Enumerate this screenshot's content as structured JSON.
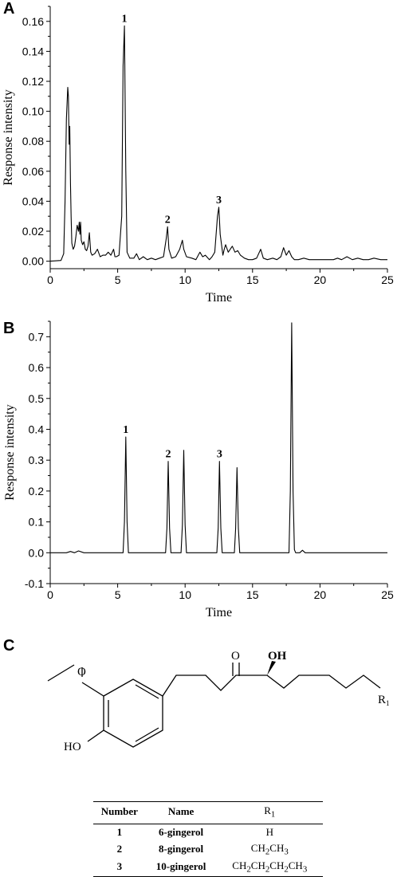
{
  "panels": {
    "a": "A",
    "b": "B",
    "c": "C"
  },
  "chart_data": [
    {
      "type": "line",
      "xlabel": "Time",
      "ylabel": "Response intensity",
      "xlim": [
        0,
        25
      ],
      "ylim": [
        -0.005,
        0.17
      ],
      "xticks": [
        "0",
        "5",
        "10",
        "15",
        "20",
        "25"
      ],
      "yticks": [
        "0.00",
        "0.02",
        "0.04",
        "0.06",
        "0.08",
        "0.10",
        "0.12",
        "0.14",
        "0.16"
      ],
      "peak_labels": [
        {
          "text": "1",
          "x": 5.5,
          "y": 0.157
        },
        {
          "text": "2",
          "x": 8.7,
          "y": 0.023
        },
        {
          "text": "3",
          "x": 12.5,
          "y": 0.036
        }
      ],
      "series": [
        {
          "x": [
            0,
            0.8,
            1.0,
            1.1,
            1.2,
            1.3,
            1.35,
            1.4,
            1.45,
            1.5,
            1.55,
            1.6,
            1.7,
            1.8,
            1.9,
            2.0,
            2.1,
            2.15,
            2.2,
            2.25,
            2.3,
            2.4,
            2.5,
            2.6,
            2.7,
            2.8,
            2.9,
            3.0,
            3.1,
            3.3,
            3.5,
            3.7,
            3.9,
            4.1,
            4.3,
            4.5,
            4.7,
            4.8,
            4.9,
            5.1,
            5.3,
            5.4,
            5.5,
            5.6,
            5.7,
            5.9,
            6.2,
            6.4,
            6.6,
            6.9,
            7.2,
            7.5,
            7.8,
            8.1,
            8.4,
            8.6,
            8.7,
            8.8,
            9.0,
            9.3,
            9.6,
            9.8,
            9.9,
            10.1,
            10.5,
            10.8,
            11.1,
            11.3,
            11.5,
            11.8,
            12.0,
            12.2,
            12.4,
            12.5,
            12.6,
            12.8,
            12.9,
            13.0,
            13.2,
            13.5,
            13.7,
            13.9,
            14.1,
            14.4,
            14.7,
            15.0,
            15.3,
            15.6,
            15.8,
            16.1,
            16.5,
            16.8,
            17.1,
            17.3,
            17.5,
            17.7,
            17.9,
            18.1,
            18.4,
            18.8,
            19.2,
            19.8,
            20.5,
            21.0,
            21.3,
            21.6,
            22.0,
            22.4,
            22.8,
            23.2,
            23.6,
            24.0,
            24.5,
            25.0
          ],
          "y": [
            0.0,
            0.0005,
            0.005,
            0.04,
            0.095,
            0.116,
            0.11,
            0.078,
            0.09,
            0.052,
            0.03,
            0.012,
            0.008,
            0.01,
            0.016,
            0.024,
            0.02,
            0.026,
            0.018,
            0.026,
            0.014,
            0.011,
            0.013,
            0.008,
            0.007,
            0.01,
            0.019,
            0.006,
            0.004,
            0.005,
            0.008,
            0.003,
            0.004,
            0.004,
            0.006,
            0.004,
            0.008,
            0.003,
            0.003,
            0.004,
            0.03,
            0.13,
            0.157,
            0.06,
            0.006,
            0.002,
            0.002,
            0.005,
            0.001,
            0.003,
            0.001,
            0.002,
            0.001,
            0.002,
            0.003,
            0.015,
            0.023,
            0.008,
            0.002,
            0.003,
            0.008,
            0.014,
            0.008,
            0.003,
            0.002,
            0.001,
            0.006,
            0.003,
            0.004,
            0.001,
            0.003,
            0.006,
            0.03,
            0.036,
            0.018,
            0.004,
            0.008,
            0.011,
            0.006,
            0.01,
            0.006,
            0.007,
            0.004,
            0.002,
            0.001,
            0.001,
            0.002,
            0.008,
            0.002,
            0.001,
            0.002,
            0.001,
            0.003,
            0.009,
            0.004,
            0.007,
            0.003,
            0.001,
            0.001,
            0.002,
            0.001,
            0.001,
            0.001,
            0.001,
            0.002,
            0.001,
            0.003,
            0.001,
            0.002,
            0.001,
            0.001,
            0.002,
            0.001,
            0.001
          ]
        }
      ]
    },
    {
      "type": "line",
      "xlabel": "Time",
      "ylabel": "Response intensity",
      "xlim": [
        0,
        25
      ],
      "ylim": [
        -0.1,
        0.75
      ],
      "xticks": [
        "0",
        "5",
        "10",
        "15",
        "20",
        "25"
      ],
      "yticks": [
        "-0.1",
        "0.0",
        "0.1",
        "0.2",
        "0.3",
        "0.4",
        "0.5",
        "0.6",
        "0.7"
      ],
      "peak_labels": [
        {
          "text": "1",
          "x": 5.6,
          "y": 0.375
        },
        {
          "text": "2",
          "x": 8.75,
          "y": 0.296
        },
        {
          "text": "3",
          "x": 12.55,
          "y": 0.296
        }
      ],
      "series": [
        {
          "x": [
            0,
            1.2,
            1.5,
            1.8,
            2.1,
            2.5,
            5.4,
            5.5,
            5.6,
            5.7,
            5.8,
            8.55,
            8.65,
            8.75,
            8.85,
            8.95,
            9.7,
            9.8,
            9.9,
            10.0,
            10.1,
            12.35,
            12.45,
            12.55,
            12.65,
            12.75,
            13.65,
            13.75,
            13.85,
            13.95,
            14.05,
            17.7,
            17.8,
            17.9,
            18.0,
            18.1,
            18.2,
            18.5,
            18.7,
            18.9,
            19.2,
            25.0
          ],
          "y": [
            0.0,
            0.0,
            0.004,
            0.0,
            0.006,
            0.0,
            0.0,
            0.1,
            0.375,
            0.1,
            0.0,
            0.0,
            0.08,
            0.296,
            0.08,
            0.0,
            0.0,
            0.09,
            0.332,
            0.09,
            0.0,
            0.0,
            0.08,
            0.296,
            0.08,
            0.0,
            0.0,
            0.08,
            0.276,
            0.08,
            0.0,
            0.0,
            0.2,
            0.745,
            0.2,
            0.01,
            0.0,
            0.0,
            0.008,
            0.0,
            0.0,
            0.0
          ]
        }
      ]
    }
  ],
  "structure": {
    "carbonyl_o": "O",
    "hydroxyl": "OH",
    "phenol": "HO",
    "r_group": "R"
  },
  "table": {
    "headers": {
      "number": "Number",
      "name": "Name",
      "r1_base": "R"
    },
    "rows": [
      {
        "number": "1",
        "name": "6-gingerol",
        "r1": "H"
      },
      {
        "number": "2",
        "name": "8-gingerol",
        "r1": "CH2CH3"
      },
      {
        "number": "3",
        "name": "10-gingerol",
        "r1": "CH2CH2CH2CH3"
      }
    ]
  }
}
